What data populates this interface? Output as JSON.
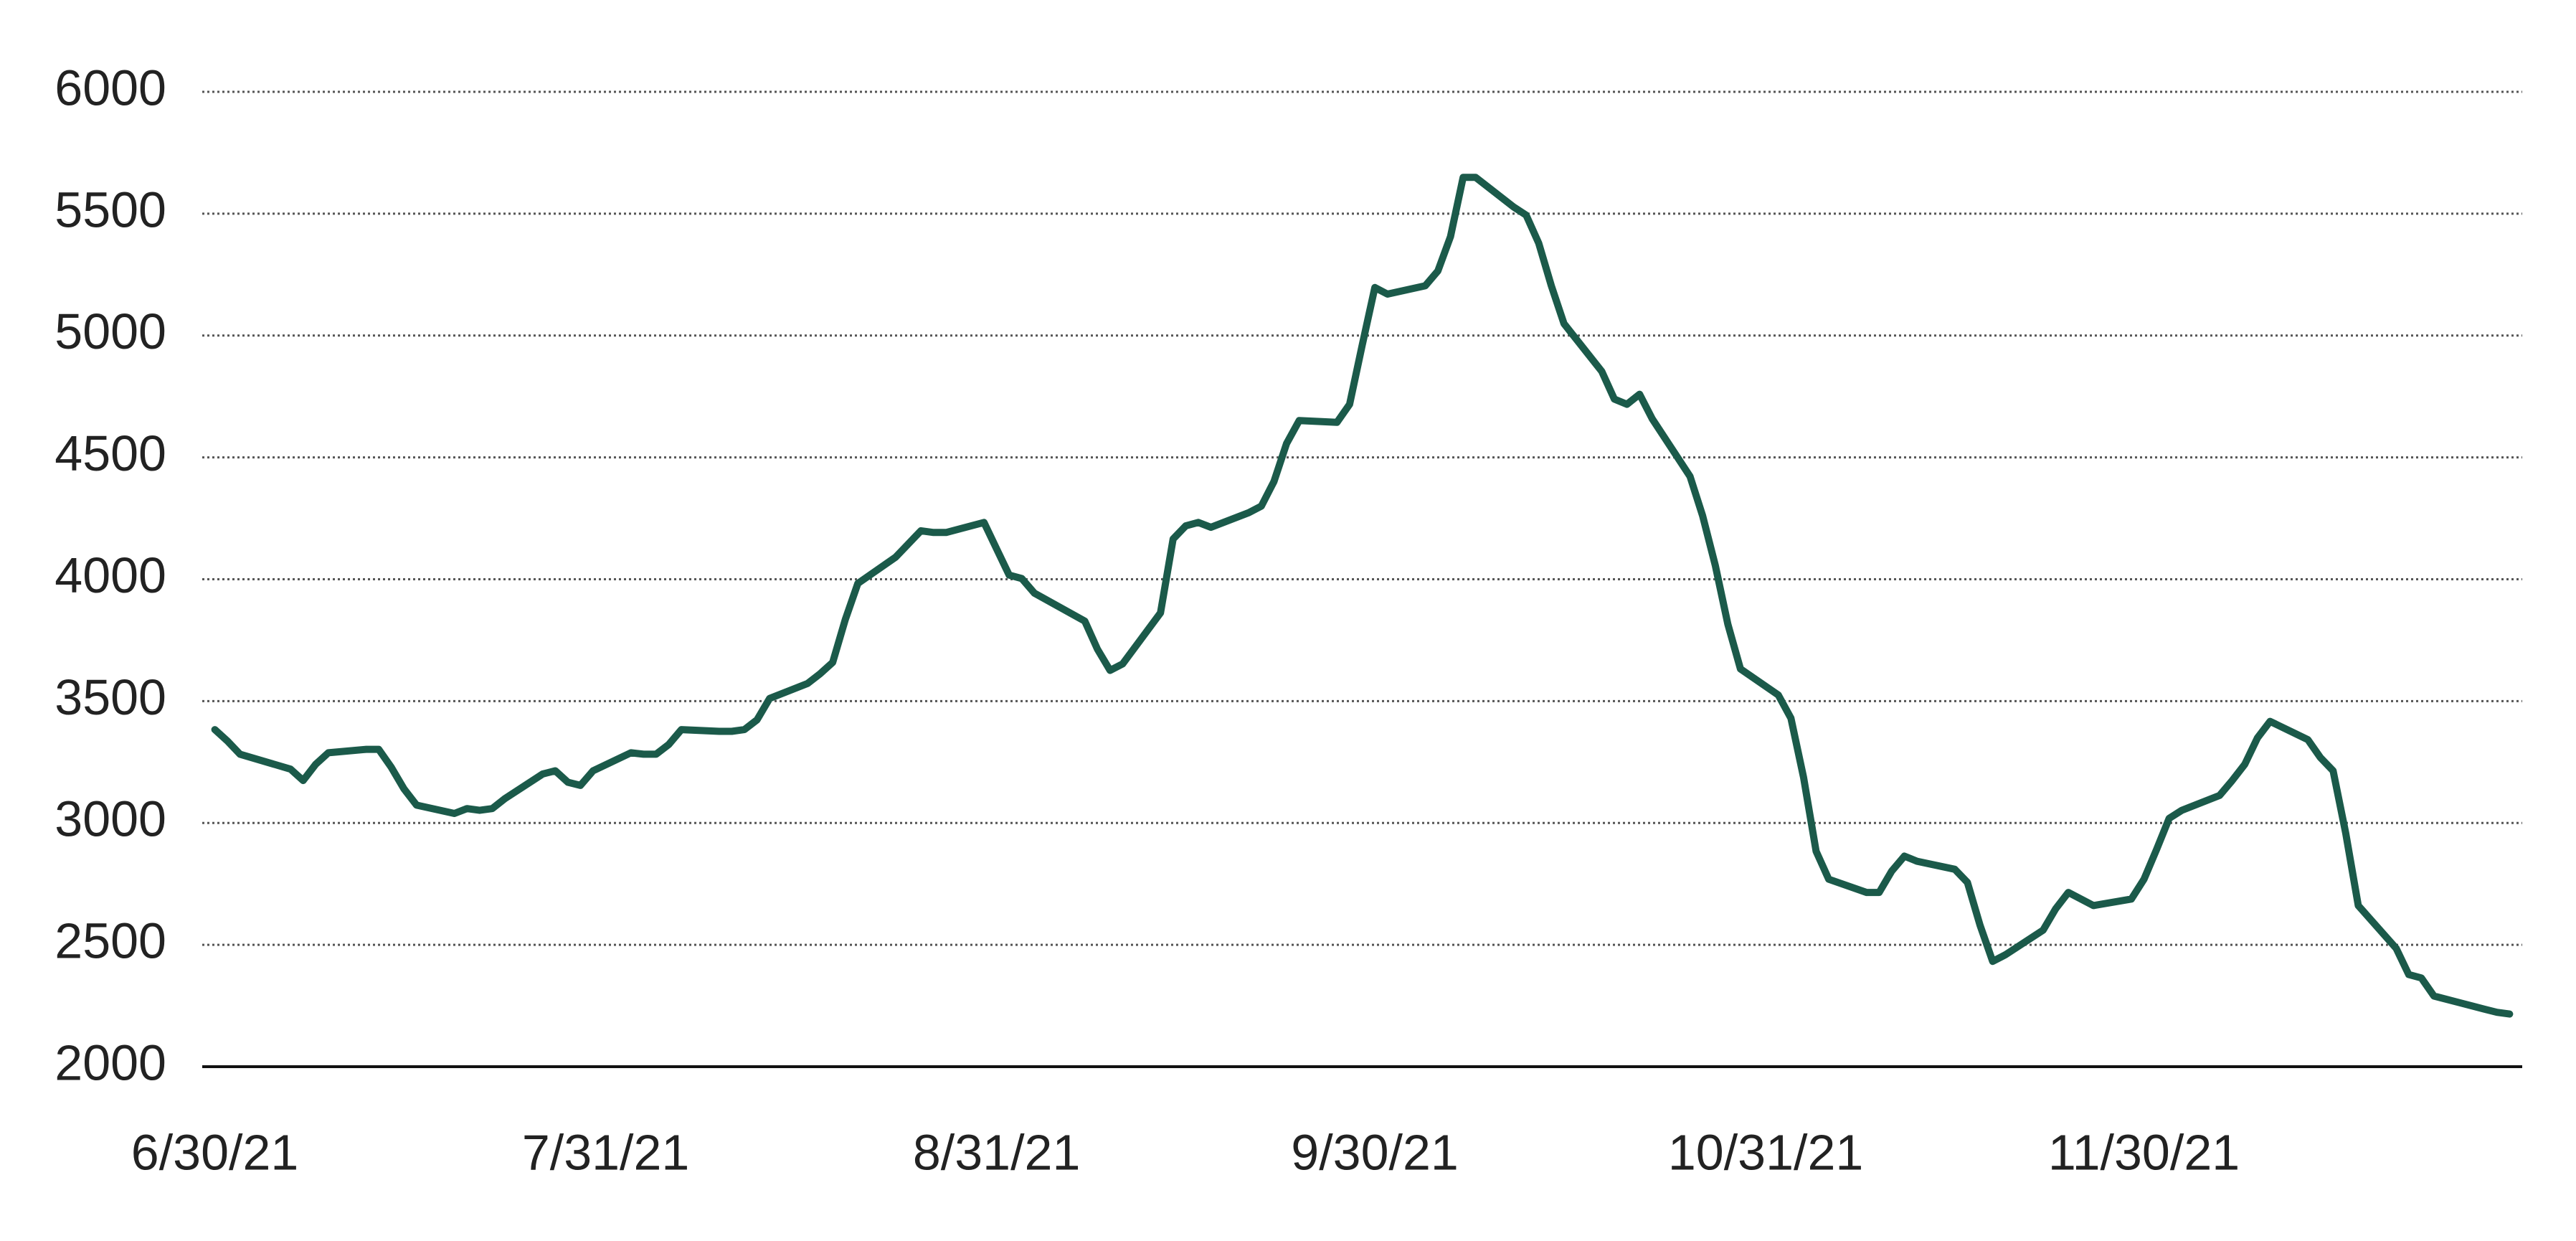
{
  "chart_data": {
    "type": "line",
    "x": [
      "2021-06-30",
      "2021-07-01",
      "2021-07-02",
      "2021-07-06",
      "2021-07-07",
      "2021-07-08",
      "2021-07-09",
      "2021-07-12",
      "2021-07-13",
      "2021-07-14",
      "2021-07-15",
      "2021-07-16",
      "2021-07-19",
      "2021-07-20",
      "2021-07-21",
      "2021-07-22",
      "2021-07-23",
      "2021-07-26",
      "2021-07-27",
      "2021-07-28",
      "2021-07-29",
      "2021-07-30",
      "2021-08-02",
      "2021-08-03",
      "2021-08-04",
      "2021-08-05",
      "2021-08-06",
      "2021-08-09",
      "2021-08-10",
      "2021-08-11",
      "2021-08-12",
      "2021-08-13",
      "2021-08-16",
      "2021-08-17",
      "2021-08-18",
      "2021-08-19",
      "2021-08-20",
      "2021-08-23",
      "2021-08-24",
      "2021-08-25",
      "2021-08-26",
      "2021-08-27",
      "2021-08-30",
      "2021-08-31",
      "2021-09-01",
      "2021-09-02",
      "2021-09-03",
      "2021-09-07",
      "2021-09-08",
      "2021-09-09",
      "2021-09-10",
      "2021-09-13",
      "2021-09-14",
      "2021-09-15",
      "2021-09-16",
      "2021-09-17",
      "2021-09-20",
      "2021-09-21",
      "2021-09-22",
      "2021-09-23",
      "2021-09-24",
      "2021-09-27",
      "2021-09-28",
      "2021-09-29",
      "2021-09-30",
      "2021-10-01",
      "2021-10-04",
      "2021-10-05",
      "2021-10-06",
      "2021-10-07",
      "2021-10-08",
      "2021-10-11",
      "2021-10-12",
      "2021-10-13",
      "2021-10-14",
      "2021-10-15",
      "2021-10-18",
      "2021-10-19",
      "2021-10-20",
      "2021-10-21",
      "2021-10-22",
      "2021-10-25",
      "2021-10-26",
      "2021-10-27",
      "2021-10-28",
      "2021-10-29",
      "2021-11-01",
      "2021-11-02",
      "2021-11-03",
      "2021-11-04",
      "2021-11-05",
      "2021-11-08",
      "2021-11-09",
      "2021-11-10",
      "2021-11-11",
      "2021-11-12",
      "2021-11-15",
      "2021-11-16",
      "2021-11-17",
      "2021-11-18",
      "2021-11-19",
      "2021-11-22",
      "2021-11-23",
      "2021-11-24",
      "2021-11-26",
      "2021-11-29",
      "2021-11-30",
      "2021-12-01",
      "2021-12-02",
      "2021-12-03",
      "2021-12-06",
      "2021-12-07",
      "2021-12-08",
      "2021-12-09",
      "2021-12-10",
      "2021-12-13",
      "2021-12-14",
      "2021-12-15",
      "2021-12-16",
      "2021-12-17",
      "2021-12-20",
      "2021-12-21",
      "2021-12-22",
      "2021-12-23",
      "2021-12-27",
      "2021-12-28",
      "2021-12-29"
    ],
    "values": [
      3383,
      3336,
      3282,
      3221,
      3174,
      3241,
      3288,
      3302,
      3302,
      3228,
      3140,
      3073,
      3039,
      3059,
      3052,
      3059,
      3100,
      3201,
      3214,
      3167,
      3154,
      3214,
      3288,
      3282,
      3282,
      3322,
      3383,
      3376,
      3376,
      3383,
      3423,
      3511,
      3572,
      3612,
      3659,
      3835,
      3983,
      4091,
      4145,
      4199,
      4192,
      4192,
      4233,
      4125,
      4017,
      4003,
      3943,
      3828,
      3713,
      3626,
      3653,
      3862,
      4165,
      4219,
      4233,
      4213,
      4273,
      4300,
      4401,
      4557,
      4651,
      4644,
      4718,
      4961,
      5197,
      5170,
      5204,
      5265,
      5406,
      5649,
      5649,
      5528,
      5494,
      5379,
      5204,
      5049,
      4853,
      4739,
      4718,
      4759,
      4658,
      4422,
      4260,
      4057,
      3815,
      3632,
      3525,
      3430,
      3187,
      2884,
      2769,
      2715,
      2715,
      2803,
      2864,
      2843,
      2810,
      2756,
      2580,
      2432,
      2459,
      2560,
      2648,
      2715,
      2661,
      2688,
      2769,
      2891,
      3019,
      3052,
      3113,
      3174,
      3241,
      3349,
      3417,
      3342,
      3268,
      3214,
      2958,
      2661,
      2486,
      2378,
      2364,
      2290,
      2236,
      2223,
      2216
    ],
    "color": "#1b5a4a",
    "xlim": [
      "2021-06-29",
      "2021-12-30"
    ],
    "xticks": [
      {
        "value": "2021-06-30",
        "label": "6/30/21"
      },
      {
        "value": "2021-07-31",
        "label": "7/31/21"
      },
      {
        "value": "2021-08-31",
        "label": "8/31/21"
      },
      {
        "value": "2021-09-30",
        "label": "9/30/21"
      },
      {
        "value": "2021-10-31",
        "label": "10/31/21"
      },
      {
        "value": "2021-11-30",
        "label": "11/30/21"
      }
    ],
    "ylim": [
      2000,
      6000
    ],
    "yticks": [
      2000,
      2500,
      3000,
      3500,
      4000,
      4500,
      5000,
      5500,
      6000
    ],
    "grid": true
  }
}
